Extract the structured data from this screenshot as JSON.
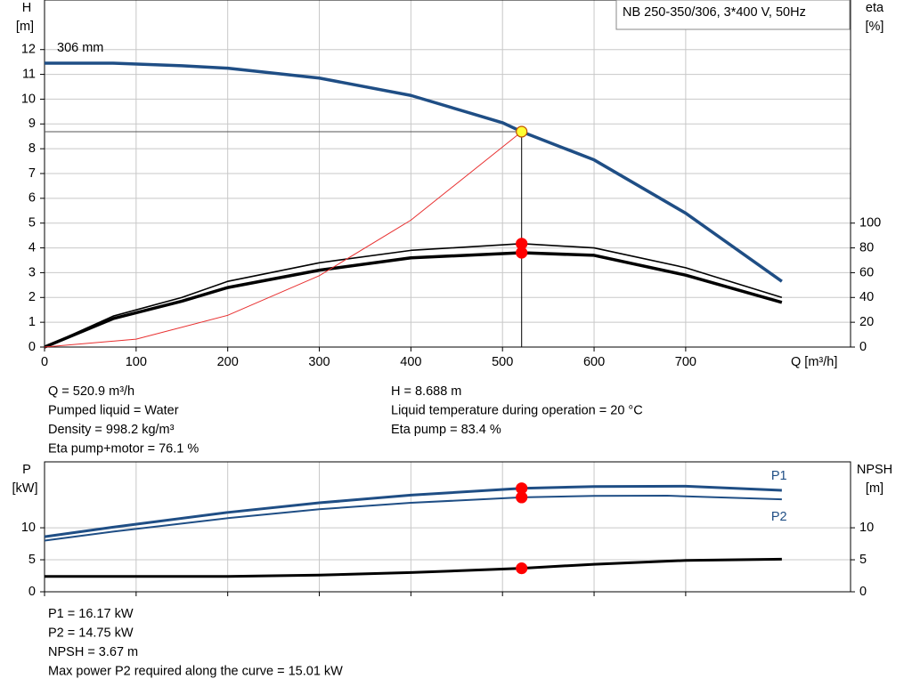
{
  "chart_data": [
    {
      "type": "line",
      "title": "NB 250-350/306, 3*400 V, 50Hz",
      "annotation": "306 mm",
      "xlabel": "Q [m³/h]",
      "ylabel": "H",
      "yunit": "[m]",
      "y2label": "eta",
      "y2unit": "[%]",
      "xlim": [
        0,
        880
      ],
      "xticks": [
        0,
        100,
        200,
        300,
        400,
        500,
        600,
        700
      ],
      "xtick_labels": true,
      "ylim": [
        0,
        14
      ],
      "yticks": [
        0,
        1,
        2,
        3,
        4,
        5,
        6,
        7,
        8,
        9,
        10,
        11,
        12
      ],
      "y2lim": [
        0,
        280
      ],
      "y2ticks": [
        0,
        20,
        40,
        60,
        80,
        100
      ],
      "grid": true,
      "marker_x": 520.9,
      "series": [
        {
          "color": "#1f4e85",
          "width": 3.5,
          "marker_color": "#ffff33",
          "guide": true,
          "x": [
            0,
            75,
            150,
            200,
            300,
            400,
            500,
            520.9,
            600,
            700,
            805
          ],
          "values": [
            11.45,
            11.45,
            11.35,
            11.25,
            10.85,
            10.15,
            9.05,
            8.688,
            7.55,
            5.4,
            2.65
          ]
        },
        {
          "color": "#000000",
          "width": 1.6,
          "axis": "y2",
          "marker_color": "#ff0000",
          "x": [
            0,
            75,
            150,
            200,
            300,
            400,
            520.9,
            600,
            700,
            805
          ],
          "values": [
            0,
            25,
            40,
            53,
            68,
            78,
            83.4,
            80,
            64,
            40
          ]
        },
        {
          "color": "#000000",
          "width": 3.5,
          "axis": "y2",
          "marker_color": "#ff0000",
          "x": [
            0,
            75,
            150,
            200,
            300,
            400,
            520.9,
            600,
            700,
            805
          ],
          "values": [
            0,
            23,
            37,
            48,
            62,
            72,
            76.1,
            74,
            58,
            36
          ]
        },
        {
          "color": "#e83030",
          "width": 1,
          "x": [
            0,
            100,
            200,
            300,
            400,
            520.9
          ],
          "values": [
            0,
            0.32,
            1.28,
            2.88,
            5.12,
            8.688
          ]
        }
      ]
    },
    {
      "type": "line",
      "ylabel": "P",
      "yunit": "[kW]",
      "y2label": "NPSH",
      "y2unit": "[m]",
      "xlim": [
        0,
        880
      ],
      "xticks": [
        0,
        100,
        200,
        300,
        400,
        500,
        600,
        700
      ],
      "xtick_labels": false,
      "ylim": [
        0,
        20.3
      ],
      "yticks": [
        0,
        5,
        10
      ],
      "y2lim": [
        0,
        20.3
      ],
      "y2ticks": [
        0,
        5,
        10
      ],
      "grid": true,
      "marker_x": 520.9,
      "series": [
        {
          "name": "P1",
          "label_side": "above",
          "color": "#1f4e85",
          "width": 3,
          "marker_color": "#ff0000",
          "x": [
            0,
            75,
            200,
            300,
            400,
            520.9,
            600,
            700,
            805
          ],
          "values": [
            8.6,
            10.1,
            12.4,
            13.9,
            15.1,
            16.17,
            16.45,
            16.5,
            15.85
          ]
        },
        {
          "name": "P2",
          "label_side": "below",
          "color": "#1f4e85",
          "width": 2,
          "marker_color": "#ff0000",
          "x": [
            0,
            75,
            200,
            300,
            400,
            520.9,
            600,
            680,
            805
          ],
          "values": [
            8.0,
            9.4,
            11.5,
            12.9,
            13.9,
            14.75,
            14.98,
            15.01,
            14.45
          ]
        },
        {
          "color": "#000000",
          "width": 3,
          "axis": "y2",
          "marker_color": "#ff0000",
          "x": [
            0,
            75,
            200,
            300,
            400,
            520.9,
            600,
            700,
            805
          ],
          "values": [
            2.4,
            2.4,
            2.4,
            2.6,
            3.0,
            3.67,
            4.3,
            4.9,
            5.1
          ]
        }
      ]
    }
  ],
  "info_top_left": [
    "Q = 520.9 m³/h",
    "Pumped liquid = Water",
    "Density = 998.2 kg/m³",
    "Eta pump+motor = 76.1 %"
  ],
  "info_top_right": [
    "H = 8.688 m",
    "Liquid temperature during operation = 20 °C",
    "Eta pump = 83.4 %"
  ],
  "info_bottom": [
    "P1 = 16.17 kW",
    "P2 = 14.75 kW",
    "NPSH = 3.67 m",
    "Max power P2 required along the curve = 15.01 kW"
  ]
}
